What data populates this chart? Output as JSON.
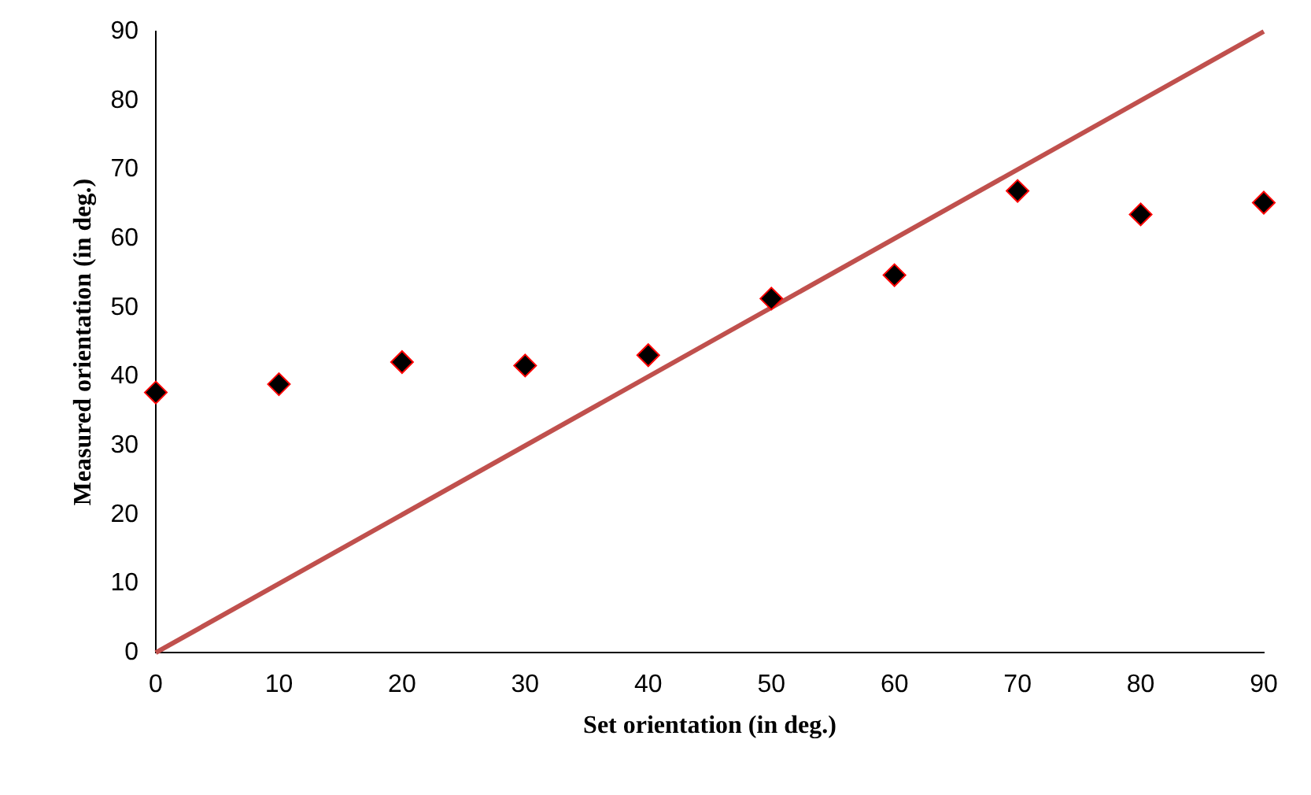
{
  "chart_data": {
    "type": "scatter",
    "xlabel": "Set orientation (in deg.)",
    "ylabel": "Measured orientation (in deg.)",
    "xlim": [
      0,
      90
    ],
    "xticks": [
      0,
      10,
      20,
      30,
      40,
      50,
      60,
      70,
      80,
      90
    ],
    "ylim": [
      0,
      90
    ],
    "yticks": [
      0,
      10,
      20,
      30,
      40,
      50,
      60,
      70,
      80,
      90
    ],
    "grid": false,
    "legend": false,
    "series": [
      {
        "type": "scatter",
        "color": "#000000",
        "marker": "diamond",
        "x": [
          0,
          10,
          20,
          30,
          40,
          50,
          60,
          70,
          80,
          90
        ],
        "values": [
          37.7,
          38.9,
          42.1,
          41.6,
          43.1,
          51.3,
          54.7,
          66.9,
          63.5,
          65.2
        ]
      },
      {
        "type": "line",
        "color": "#c0504d",
        "marker": "none",
        "line_style": "solid",
        "x": [
          0,
          90
        ],
        "values": [
          0,
          90
        ]
      }
    ]
  }
}
